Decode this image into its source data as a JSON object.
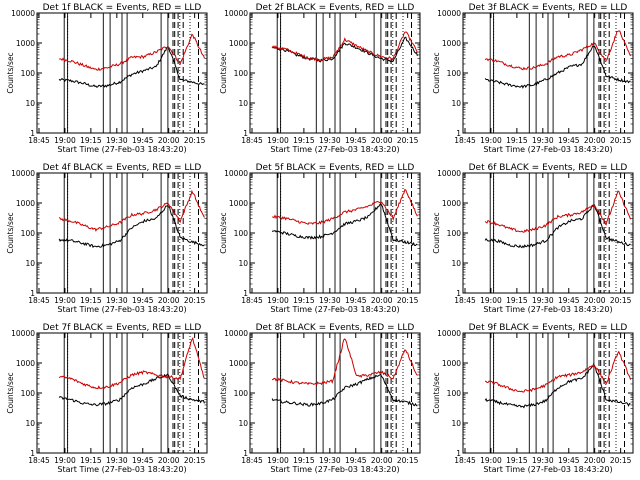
{
  "chart_data": [
    {
      "type": "line",
      "title": "Det 1f BLACK = Events, RED = LLD",
      "xlabel": "Start Time (27-Feb-03 18:43:20)",
      "ylabel": "Counts/sec",
      "xticks": [
        "18:45",
        "19:00",
        "19:15",
        "19:30",
        "19:45",
        "20:00",
        "20:15"
      ],
      "yticks": [
        "1",
        "10",
        "100",
        "1000",
        "10000"
      ],
      "ylim": [
        1,
        10000
      ],
      "yscale": "log",
      "series": [
        {
          "name": "Events",
          "color": "#000000",
          "values": [
            60,
            55,
            45,
            35,
            38,
            50,
            90,
            120,
            160,
            800,
            60,
            50,
            40
          ]
        },
        {
          "name": "LLD",
          "color": "#cc0000",
          "values": [
            300,
            250,
            180,
            130,
            150,
            200,
            330,
            350,
            500,
            800,
            200,
            2000,
            300
          ]
        }
      ]
    },
    {
      "type": "line",
      "title": "Det 2f BLACK = Events, RED = LLD",
      "xlabel": "Start Time (27-Feb-03 18:43:20)",
      "ylabel": "Counts/sec",
      "xticks": [
        "18:45",
        "19:00",
        "19:15",
        "19:30",
        "19:45",
        "20:00",
        "20:15"
      ],
      "yticks": [
        "1",
        "10",
        "100",
        "1000",
        "10000"
      ],
      "ylim": [
        1,
        10000
      ],
      "yscale": "log",
      "series": [
        {
          "name": "Events",
          "color": "#000000",
          "values": [
            700,
            600,
            400,
            300,
            260,
            300,
            1000,
            700,
            450,
            300,
            250,
            1500,
            400
          ]
        },
        {
          "name": "LLD",
          "color": "#cc0000",
          "values": [
            750,
            650,
            450,
            320,
            280,
            330,
            1300,
            800,
            500,
            350,
            300,
            2500,
            500
          ]
        }
      ]
    },
    {
      "type": "line",
      "title": "Det 3f BLACK = Events, RED = LLD",
      "xlabel": "Start Time (27-Feb-03 18:43:20)",
      "ylabel": "Counts/sec",
      "xticks": [
        "18:45",
        "19:00",
        "19:15",
        "19:30",
        "19:45",
        "20:00",
        "20:15"
      ],
      "yticks": [
        "1",
        "10",
        "100",
        "1000",
        "10000"
      ],
      "ylim": [
        1,
        10000
      ],
      "yscale": "log",
      "series": [
        {
          "name": "Events",
          "color": "#000000",
          "values": [
            60,
            50,
            40,
            35,
            40,
            60,
            100,
            160,
            200,
            900,
            80,
            60,
            50
          ]
        },
        {
          "name": "LLD",
          "color": "#cc0000",
          "values": [
            300,
            250,
            180,
            140,
            150,
            200,
            350,
            400,
            600,
            1000,
            250,
            3000,
            350
          ]
        }
      ]
    },
    {
      "type": "line",
      "title": "Det 4f BLACK = Events, RED = LLD",
      "xlabel": "Start Time (27-Feb-03 18:43:20)",
      "ylabel": "Counts/sec",
      "xticks": [
        "18:45",
        "19:00",
        "19:15",
        "19:30",
        "19:45",
        "20:00",
        "20:15"
      ],
      "yticks": [
        "1",
        "10",
        "100",
        "1000",
        "10000"
      ],
      "ylim": [
        1,
        10000
      ],
      "yscale": "log",
      "series": [
        {
          "name": "Events",
          "color": "#000000",
          "values": [
            60,
            55,
            45,
            35,
            40,
            55,
            150,
            250,
            300,
            900,
            70,
            50,
            40
          ]
        },
        {
          "name": "LLD",
          "color": "#cc0000",
          "values": [
            300,
            250,
            180,
            130,
            160,
            220,
            400,
            450,
            600,
            1000,
            250,
            2500,
            300
          ]
        }
      ]
    },
    {
      "type": "line",
      "title": "Det 5f BLACK = Events, RED = LLD",
      "xlabel": "Start Time (27-Feb-03 18:43:20)",
      "ylabel": "Counts/sec",
      "xticks": [
        "18:45",
        "19:00",
        "19:15",
        "19:30",
        "19:45",
        "20:00",
        "20:15"
      ],
      "yticks": [
        "1",
        "10",
        "100",
        "1000",
        "10000"
      ],
      "ylim": [
        1,
        10000
      ],
      "yscale": "log",
      "series": [
        {
          "name": "Events",
          "color": "#000000",
          "values": [
            120,
            100,
            80,
            70,
            75,
            100,
            200,
            250,
            350,
            1000,
            60,
            50,
            40
          ]
        },
        {
          "name": "LLD",
          "color": "#cc0000",
          "values": [
            350,
            320,
            250,
            200,
            220,
            300,
            500,
            600,
            800,
            1200,
            300,
            3000,
            350
          ]
        }
      ]
    },
    {
      "type": "line",
      "title": "Det 6f BLACK = Events, RED = LLD",
      "xlabel": "Start Time (27-Feb-03 18:43:20)",
      "ylabel": "Counts/sec",
      "xticks": [
        "18:45",
        "19:00",
        "19:15",
        "19:30",
        "19:45",
        "20:00",
        "20:15"
      ],
      "yticks": [
        "1",
        "10",
        "100",
        "1000",
        "10000"
      ],
      "ylim": [
        1,
        10000
      ],
      "yscale": "log",
      "series": [
        {
          "name": "Events",
          "color": "#000000",
          "values": [
            60,
            55,
            40,
            35,
            40,
            55,
            150,
            250,
            300,
            900,
            70,
            50,
            40
          ]
        },
        {
          "name": "LLD",
          "color": "#cc0000",
          "values": [
            250,
            200,
            140,
            110,
            130,
            180,
            350,
            400,
            500,
            900,
            200,
            2500,
            300
          ]
        }
      ]
    },
    {
      "type": "line",
      "title": "Det 7f BLACK = Events, RED = LLD",
      "xlabel": "Start Time (27-Feb-03 18:43:20)",
      "ylabel": "Counts/sec",
      "xticks": [
        "18:45",
        "19:00",
        "19:15",
        "19:30",
        "19:45",
        "20:00",
        "20:15"
      ],
      "yticks": [
        "1",
        "10",
        "100",
        "1000",
        "10000"
      ],
      "ylim": [
        1,
        10000
      ],
      "yscale": "log",
      "series": [
        {
          "name": "Events",
          "color": "#000000",
          "values": [
            70,
            60,
            45,
            40,
            45,
            60,
            150,
            200,
            300,
            400,
            80,
            60,
            50
          ]
        },
        {
          "name": "LLD",
          "color": "#cc0000",
          "values": [
            350,
            300,
            200,
            150,
            160,
            220,
            400,
            500,
            400,
            350,
            300,
            7000,
            300
          ]
        }
      ]
    },
    {
      "type": "line",
      "title": "Det 8f BLACK = Events, RED = LLD",
      "xlabel": "Start Time (27-Feb-03 18:43:20)",
      "ylabel": "Counts/sec",
      "xticks": [
        "18:45",
        "19:00",
        "19:15",
        "19:30",
        "19:45",
        "20:00",
        "20:15"
      ],
      "yticks": [
        "1",
        "10",
        "100",
        "1000",
        "10000"
      ],
      "ylim": [
        1,
        10000
      ],
      "yscale": "log",
      "series": [
        {
          "name": "Events",
          "color": "#000000",
          "values": [
            60,
            50,
            45,
            40,
            45,
            60,
            150,
            200,
            300,
            400,
            60,
            50,
            40
          ]
        },
        {
          "name": "LLD",
          "color": "#cc0000",
          "values": [
            300,
            260,
            220,
            200,
            210,
            250,
            7000,
            350,
            400,
            500,
            300,
            3000,
            350
          ]
        }
      ]
    },
    {
      "type": "line",
      "title": "Det 9f BLACK = Events, RED = LLD",
      "xlabel": "Start Time (27-Feb-03 18:43:20)",
      "ylabel": "Counts/sec",
      "xticks": [
        "18:45",
        "19:00",
        "19:15",
        "19:30",
        "19:45",
        "20:00",
        "20:15"
      ],
      "yticks": [
        "1",
        "10",
        "100",
        "1000",
        "10000"
      ],
      "ylim": [
        1,
        10000
      ],
      "yscale": "log",
      "series": [
        {
          "name": "Events",
          "color": "#000000",
          "values": [
            60,
            50,
            40,
            35,
            40,
            55,
            150,
            250,
            300,
            900,
            60,
            50,
            40
          ]
        },
        {
          "name": "LLD",
          "color": "#cc0000",
          "values": [
            250,
            200,
            140,
            110,
            130,
            180,
            350,
            400,
            500,
            900,
            200,
            2500,
            300
          ]
        }
      ]
    }
  ]
}
